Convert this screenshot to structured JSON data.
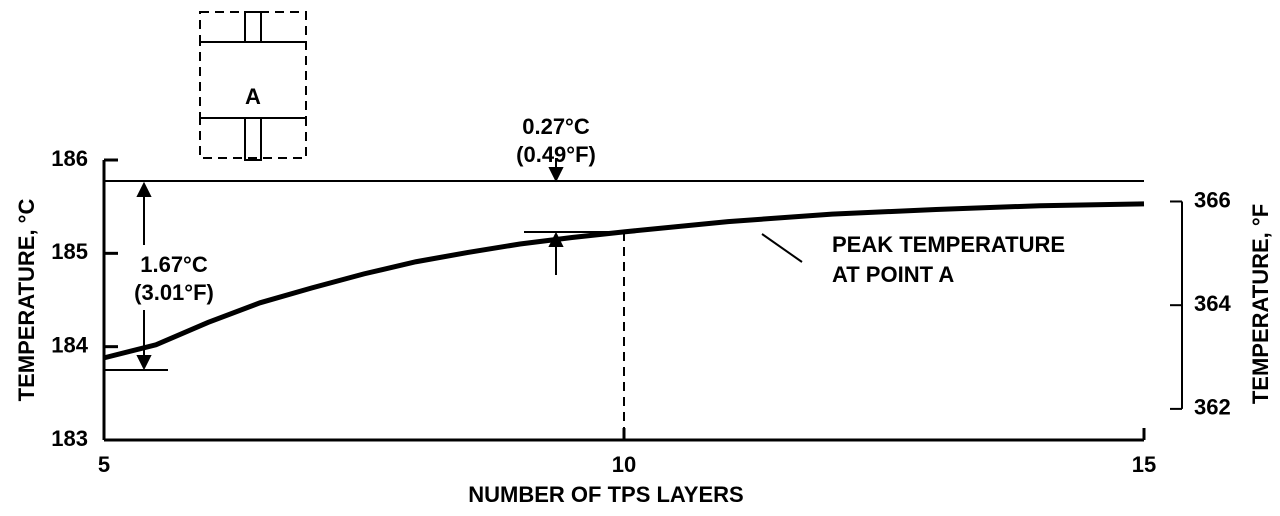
{
  "chart_data": {
    "type": "line",
    "xlabel": "NUMBER OF TPS LAYERS",
    "ylabel": "TEMPERATURE, °C",
    "y2label": "TEMPERATURE, °F",
    "x": [
      5,
      5.5,
      6,
      6.5,
      7,
      7.5,
      8,
      8.5,
      9,
      9.5,
      10,
      11,
      12,
      13,
      14,
      15
    ],
    "series": [
      {
        "name": "PEAK TEMPERATURE AT POINT A",
        "color": "#000000",
        "values": [
          183.88,
          184.02,
          184.26,
          184.47,
          184.63,
          184.78,
          184.91,
          185.01,
          185.1,
          185.17,
          185.23,
          185.34,
          185.42,
          185.47,
          185.51,
          185.53
        ]
      }
    ],
    "xlim": [
      5,
      15
    ],
    "xticks": [
      5,
      10,
      15
    ],
    "ylim": [
      183,
      186
    ],
    "yticks": [
      183,
      184,
      185,
      186
    ],
    "y2lim": [
      361.4,
      366.8
    ],
    "y2ticks": [
      362,
      364,
      366
    ],
    "annotations": {
      "peak_1": "PEAK TEMPERATURE",
      "peak_2": "AT POINT A",
      "point": "A",
      "delta_small_c": "0.27°C",
      "delta_small_f": "(0.49°F)",
      "delta_large_c": "1.67°C",
      "delta_large_f": "(3.01°F)"
    }
  }
}
